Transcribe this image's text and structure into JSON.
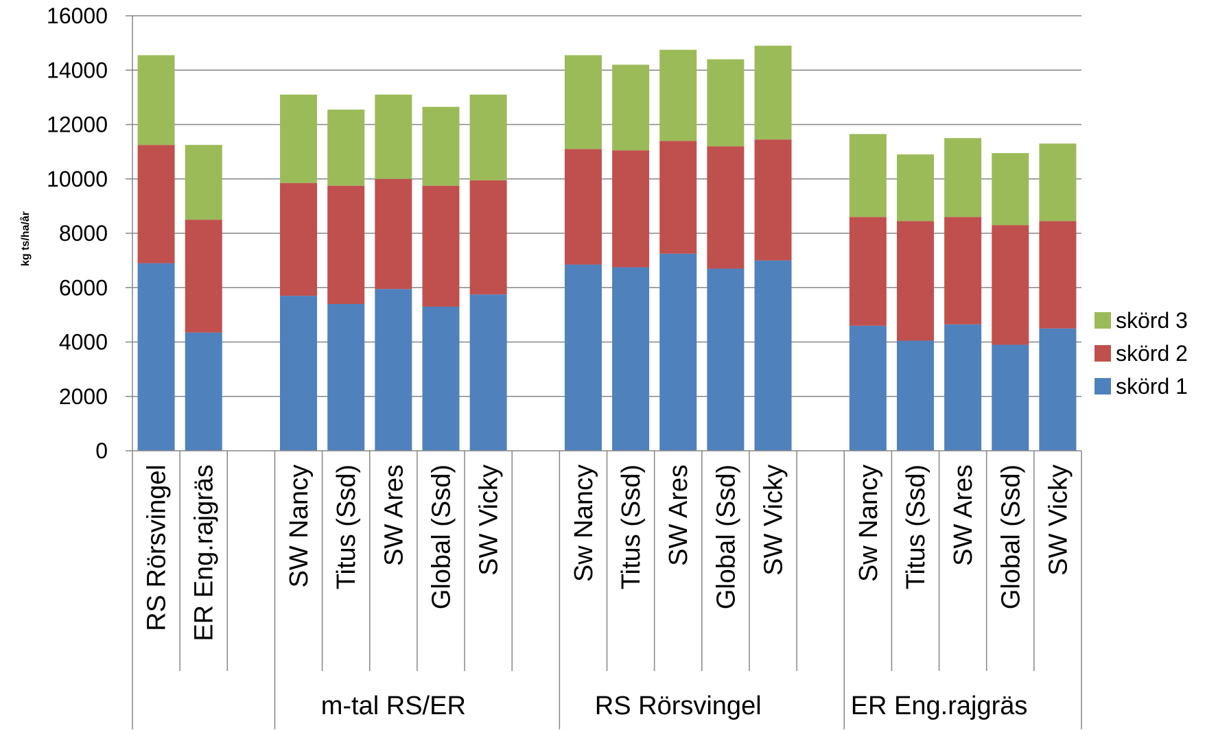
{
  "chart_data": {
    "type": "bar",
    "stacked": true,
    "title": "",
    "xlabel": "",
    "ylabel": "kg ts/ha/år",
    "ylim": [
      0,
      16000
    ],
    "yticks": [
      0,
      2000,
      4000,
      6000,
      8000,
      10000,
      12000,
      14000,
      16000
    ],
    "grid": true,
    "legend_position": "right",
    "categories": [
      "RS Rörsvingel",
      "ER Eng.rajgräs",
      "",
      "SW Nancy",
      "Titus (Ssd)",
      "SW Ares",
      "Global (Ssd)",
      "SW Vicky",
      "",
      "Sw Nancy",
      "Titus (Ssd)",
      "SW Ares",
      "Global (Ssd)",
      "SW Vicky",
      "",
      "Sw Nancy",
      "Titus (Ssd)",
      "SW Ares",
      "Global (Ssd)",
      "SW Vicky"
    ],
    "groups": [
      {
        "label": "",
        "start": 0,
        "end": 2
      },
      {
        "label": "m-tal  RS/ER",
        "start": 3,
        "end": 8
      },
      {
        "label": "RS Rörsvingel",
        "start": 9,
        "end": 14
      },
      {
        "label": "ER Eng.rajgräs",
        "start": 15,
        "end": 19
      }
    ],
    "series": [
      {
        "name": "skörd 1",
        "color": "#4F81BD",
        "values": [
          6900,
          4350,
          null,
          5700,
          5400,
          5950,
          5300,
          5750,
          null,
          6850,
          6750,
          7250,
          6700,
          7000,
          null,
          4600,
          4050,
          4650,
          3900,
          4500
        ]
      },
      {
        "name": "skörd 2",
        "color": "#C0504D",
        "values": [
          4350,
          4150,
          null,
          4150,
          4350,
          4050,
          4450,
          4200,
          null,
          4250,
          4300,
          4150,
          4500,
          4450,
          null,
          4000,
          4400,
          3950,
          4400,
          3950
        ]
      },
      {
        "name": "skörd 3",
        "color": "#9BBB59",
        "values": [
          3300,
          2750,
          null,
          3250,
          2800,
          3100,
          2900,
          3150,
          null,
          3450,
          3150,
          3350,
          3200,
          3450,
          null,
          3050,
          2450,
          2900,
          2650,
          2850
        ]
      }
    ]
  }
}
